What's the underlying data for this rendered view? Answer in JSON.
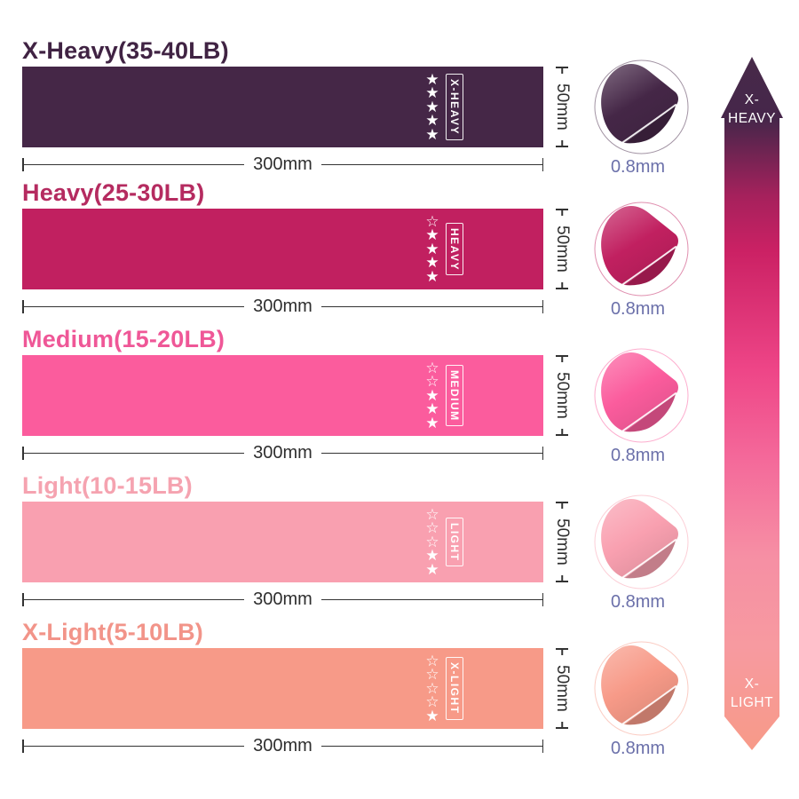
{
  "rows": [
    {
      "title": "X-Heavy(35-40LB)",
      "band_label": "X-HEAVY",
      "stars_filled": 5,
      "stars_total": 5,
      "band_color": "#452747",
      "title_color": "#402343",
      "length_label": "300mm",
      "width_label": "50mm",
      "thickness_label": "0.8mm"
    },
    {
      "title": "Heavy(25-30LB)",
      "band_label": "HEAVY",
      "stars_filled": 4,
      "stars_total": 5,
      "band_color": "#c12060",
      "title_color": "#b52b60",
      "length_label": "300mm",
      "width_label": "50mm",
      "thickness_label": "0.8mm"
    },
    {
      "title": "Medium(15-20LB)",
      "band_label": "MEDIUM",
      "stars_filled": 3,
      "stars_total": 5,
      "band_color": "#fb5c9d",
      "title_color": "#ef5797",
      "length_label": "300mm",
      "width_label": "50mm",
      "thickness_label": "0.8mm"
    },
    {
      "title": "Light(10-15LB)",
      "band_label": "LIGHT",
      "stars_filled": 2,
      "stars_total": 5,
      "band_color": "#f9a0b0",
      "title_color": "#f5a3b0",
      "length_label": "300mm",
      "width_label": "50mm",
      "thickness_label": "0.8mm"
    },
    {
      "title": "X-Light(5-10LB)",
      "band_label": "X-LIGHT",
      "stars_filled": 1,
      "stars_total": 5,
      "band_color": "#f79a88",
      "title_color": "#f29489",
      "length_label": "300mm",
      "width_label": "50mm",
      "thickness_label": "0.8mm"
    }
  ],
  "scale_arrow": {
    "top_line1": "X-",
    "top_line2": "HEAVY",
    "bottom_line1": "X-",
    "bottom_line2": "LIGHT",
    "gradient": [
      "#472a49",
      "#46264a",
      "#a5215c",
      "#cb2164",
      "#ee4587",
      "#f4699a",
      "#f68fa4",
      "#f79aa0",
      "#f79a88"
    ]
  },
  "icons": {
    "star_filled": "★",
    "star_empty": "☆"
  },
  "colors": {
    "dimension_text": "#2e2e2e",
    "thickness_text": "#6b70aa",
    "background": "#ffffff"
  }
}
